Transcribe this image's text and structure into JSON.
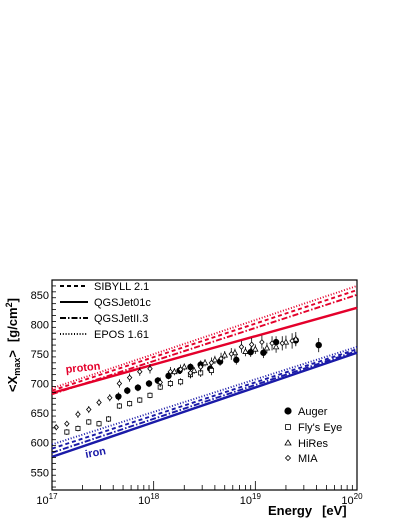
{
  "chart_data": {
    "type": "scatter",
    "title": "",
    "xlabel": "Energy",
    "xunit": "[eV]",
    "ylabel_main": "<X",
    "ylabel_sub": "max",
    "ylabel_close": ">",
    "yunit_main": "[g/cm",
    "yunit_sup": "2",
    "yunit_close": "]",
    "x_scale": "log",
    "xlim": [
      1e+17,
      1e+20
    ],
    "ylim": [
      520,
      875
    ],
    "x_ticks": [
      {
        "value": 1e+17,
        "base": "10",
        "exp": "17"
      },
      {
        "value": 1e+18,
        "base": "10",
        "exp": "18"
      },
      {
        "value": 1e+19,
        "base": "10",
        "exp": "19"
      },
      {
        "value": 1e+20,
        "base": "10",
        "exp": "20"
      }
    ],
    "y_ticks": [
      "550",
      "600",
      "650",
      "700",
      "750",
      "800",
      "850"
    ],
    "grid": false,
    "model_legend": [
      {
        "label": "SIBYLL 2.1",
        "style": "dashed"
      },
      {
        "label": "QGSJet01c",
        "style": "solid"
      },
      {
        "label": "QGSJetII.3",
        "style": "dashdot"
      },
      {
        "label": "EPOS 1.61",
        "style": "dotted"
      }
    ],
    "data_legend": [
      {
        "label": "Auger",
        "marker": "filled-circle"
      },
      {
        "label": "Fly's Eye",
        "marker": "open-square"
      },
      {
        "label": "HiRes",
        "marker": "open-triangle"
      },
      {
        "label": "MIA",
        "marker": "open-diamond"
      }
    ],
    "annotations": [
      {
        "text": "proton",
        "color": "#e4002b"
      },
      {
        "text": "iron",
        "color": "#1a1aa8"
      }
    ],
    "colors": {
      "proton": "#e4002b",
      "iron": "#1a1aa8",
      "data": "#000000"
    },
    "model_lines": [
      {
        "group": "proton",
        "model": "SIBYLL 2.1",
        "style": "dashed",
        "x": [
          1e+17,
          1e+20
        ],
        "y": [
          688,
          858
        ]
      },
      {
        "group": "proton",
        "model": "QGSJet01c",
        "style": "solid",
        "x": [
          1e+17,
          1e+20
        ],
        "y": [
          684,
          828
        ]
      },
      {
        "group": "proton",
        "model": "QGSJetII.3",
        "style": "dashdot",
        "x": [
          1e+17,
          1e+20
        ],
        "y": [
          682,
          850
        ]
      },
      {
        "group": "proton",
        "model": "EPOS 1.61",
        "style": "dotted",
        "x": [
          1e+17,
          1e+20
        ],
        "y": [
          692,
          865
        ]
      },
      {
        "group": "iron",
        "model": "SIBYLL 2.1",
        "style": "dashed",
        "x": [
          1e+17,
          1e+20
        ],
        "y": [
          590,
          758
        ]
      },
      {
        "group": "iron",
        "model": "QGSJet01c",
        "style": "solid",
        "x": [
          1e+17,
          1e+20
        ],
        "y": [
          576,
          752
        ]
      },
      {
        "group": "iron",
        "model": "QGSJetII.3",
        "style": "dashdot",
        "x": [
          1e+17,
          1e+20
        ],
        "y": [
          583,
          755
        ]
      },
      {
        "group": "iron",
        "model": "EPOS 1.61",
        "style": "dotted",
        "x": [
          1e+17,
          1e+20
        ],
        "y": [
          597,
          762
        ]
      }
    ],
    "series": [
      {
        "name": "Auger",
        "marker": "filled-circle",
        "x": [
          4.5e+17,
          5.5e+17,
          7e+17,
          9e+17,
          1.1e+18,
          1.4e+18,
          1.8e+18,
          2.3e+18,
          2.9e+18,
          3.6e+18,
          4.5e+18,
          6.5e+18,
          9e+18,
          1.2e+19,
          1.6e+19,
          2.5e+19,
          4.2e+19
        ],
        "y": [
          678,
          688,
          693,
          700,
          705,
          713,
          722,
          728,
          732,
          725,
          737,
          740,
          753,
          752,
          770,
          773,
          765
        ],
        "err": [
          7,
          6,
          6,
          6,
          6,
          6,
          6,
          6,
          7,
          7,
          7,
          8,
          8,
          9,
          10,
          9,
          12
        ]
      },
      {
        "name": "Fly's Eye",
        "marker": "open-square",
        "x": [
          1.4e+17,
          1.8e+17,
          2.3e+17,
          2.9e+17,
          3.6e+17,
          4.6e+17,
          5.8e+17,
          7.3e+17,
          9.2e+17,
          1.16e+18,
          1.46e+18,
          1.84e+18,
          2.3e+18,
          2.9e+18,
          3.7e+18
        ],
        "y": [
          618,
          624,
          635,
          632,
          640,
          662,
          666,
          672,
          680,
          694,
          700,
          703,
          715,
          718,
          722
        ],
        "err": [
          5,
          5,
          5,
          5,
          5,
          5,
          5,
          5,
          5,
          5,
          6,
          6,
          6,
          7,
          8
        ]
      },
      {
        "name": "HiRes",
        "marker": "open-triangle",
        "x": [
          1.6e+18,
          2e+18,
          2.5e+18,
          3.2e+18,
          4e+18,
          5e+18,
          6.3e+18,
          8e+18,
          1e+19,
          1.3e+19,
          1.6e+19,
          2e+19,
          2.5e+19
        ],
        "y": [
          720,
          728,
          722,
          735,
          740,
          748,
          752,
          754,
          758,
          760,
          762,
          770,
          775
        ],
        "err": [
          6,
          6,
          6,
          6,
          7,
          7,
          7,
          8,
          8,
          9,
          10,
          11,
          12
        ]
      },
      {
        "name": "MIA",
        "marker": "open-diamond",
        "x": [
          1.1e+17,
          1.4e+17,
          1.8e+17,
          2.3e+17,
          2.9e+17,
          3.7e+17,
          4.6e+17,
          5.8e+17,
          7.3e+17,
          9.2e+17,
          1.16e+18,
          1.46e+18,
          1.84e+18,
          2.3e+18,
          2.9e+18,
          3.7e+18,
          4.6e+18,
          5.8e+18,
          7.3e+18,
          9.2e+18,
          1.16e+19,
          1.46e+19,
          1.84e+19,
          2.3e+19
        ],
        "y": [
          626,
          632,
          648,
          656,
          668,
          676,
          700,
          710,
          720,
          725,
          702,
          720,
          724,
          718,
          728,
          735,
          742,
          750,
          762,
          766,
          770,
          768,
          768,
          772
        ],
        "err": [
          5,
          5,
          6,
          6,
          6,
          6,
          7,
          7,
          7,
          8,
          8,
          8,
          8,
          9,
          9,
          9,
          10,
          10,
          10,
          11,
          11,
          12,
          12,
          13
        ]
      }
    ]
  }
}
